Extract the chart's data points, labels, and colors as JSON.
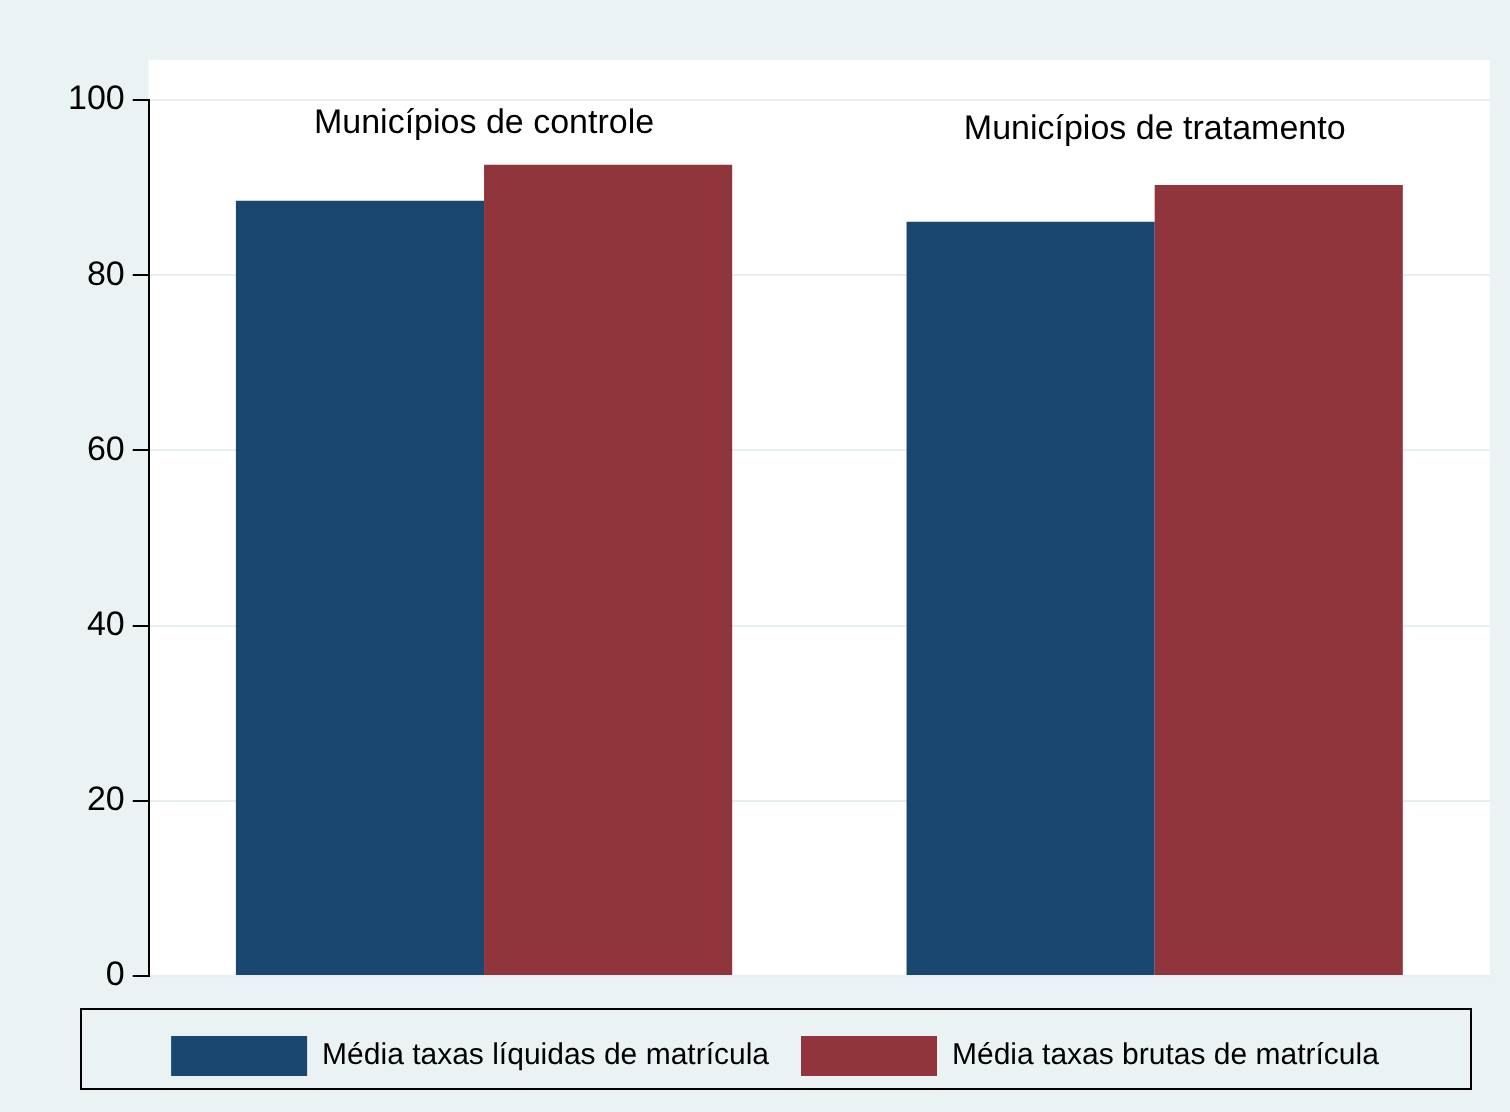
{
  "chart_data": {
    "type": "bar",
    "categories": [
      "Municípios de controle",
      "Municípios de tratamento"
    ],
    "series": [
      {
        "name": "Média taxas líquidas de matrícula",
        "color": "#1a476f",
        "values": [
          88.5,
          86.1
        ]
      },
      {
        "name": "Média taxas brutas de matrícula",
        "color": "#90353b",
        "values": [
          92.6,
          90.3
        ]
      }
    ],
    "ylim": [
      0,
      100
    ],
    "yticks": [
      0,
      20,
      40,
      60,
      80,
      100
    ],
    "grid": "y",
    "legend": "bottom"
  }
}
